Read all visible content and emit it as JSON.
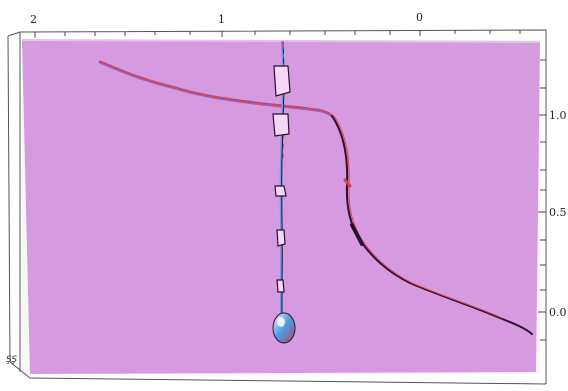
{
  "colors": {
    "surface": "#d89ae2",
    "surface_light": "#e8c0f0",
    "surface_shadow": "#9d5cb0",
    "frame": "#555555",
    "crack_dark": "#2a1030",
    "crack_red": "#d8404a",
    "crack_blue": "#5aa0e8",
    "blob_blue": "#4a9ce0",
    "blob_white": "#f0f0ff"
  },
  "axes": {
    "top_ticks": [
      "2",
      "1",
      "0"
    ],
    "right_ticks": [
      "1.0",
      "0.5",
      "0.0"
    ],
    "corner_label": "ŞŞ"
  }
}
